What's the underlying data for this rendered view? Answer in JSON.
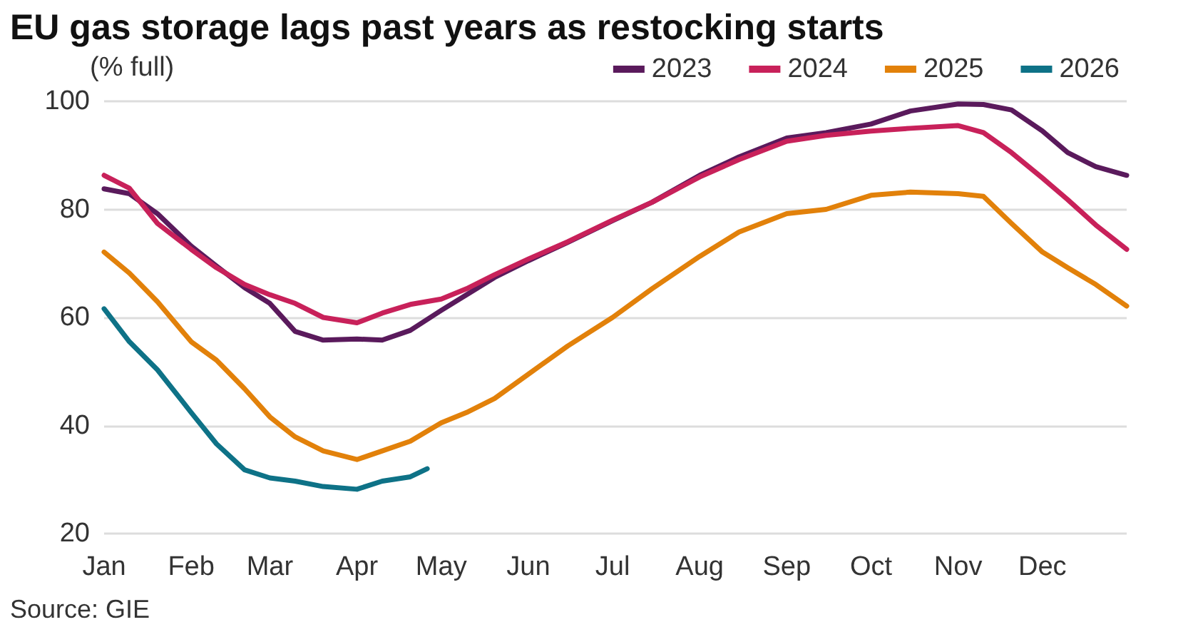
{
  "chart_data": {
    "type": "line",
    "title": "EU gas storage lags past years as restocking starts",
    "ylabel": "(% full)",
    "annotations": [
      "Source: GIE"
    ],
    "xlim": [
      "--01-01",
      "--12-31"
    ],
    "xticks": [
      {
        "value": "--01-01",
        "label": "Jan"
      },
      {
        "value": "--02-01",
        "label": "Feb"
      },
      {
        "value": "--03-01",
        "label": "Mar"
      },
      {
        "value": "--04-01",
        "label": "Apr"
      },
      {
        "value": "--05-01",
        "label": "May"
      },
      {
        "value": "--06-01",
        "label": "Jun"
      },
      {
        "value": "--07-01",
        "label": "Jul"
      },
      {
        "value": "--08-01",
        "label": "Aug"
      },
      {
        "value": "--09-01",
        "label": "Sep"
      },
      {
        "value": "--10-01",
        "label": "Oct"
      },
      {
        "value": "--11-01",
        "label": "Nov"
      },
      {
        "value": "--12-01",
        "label": "Dec"
      }
    ],
    "x": [
      "--01-01",
      "--01-10",
      "--01-20",
      "--02-01",
      "--02-10",
      "--02-20",
      "--03-01",
      "--03-10",
      "--03-20",
      "--04-01",
      "--04-10",
      "--04-20",
      "--05-01",
      "--05-10",
      "--05-20",
      "--06-01",
      "--06-15",
      "--07-01",
      "--07-15",
      "--08-01",
      "--08-15",
      "--09-01",
      "--09-15",
      "--10-01",
      "--10-15",
      "--11-01",
      "--11-10",
      "--11-20",
      "--12-01",
      "--12-10",
      "--12-20",
      "--12-31"
    ],
    "ylim": [
      20,
      100
    ],
    "yticks": [
      20,
      40,
      60,
      80,
      100
    ],
    "grid": "y",
    "legend": "top right",
    "marker": "none",
    "line_style": "solid",
    "series": [
      {
        "name": "2023",
        "color": "#5a1a5c",
        "values": [
          83.8,
          82.9,
          79.2,
          73.2,
          69.5,
          65.5,
          62.6,
          57.4,
          55.8,
          56,
          55.8,
          57.6,
          61.3,
          64.2,
          67.4,
          70.5,
          73.9,
          77.9,
          81.3,
          86.3,
          89.7,
          93.2,
          94.2,
          95.8,
          98.2,
          99.5,
          99.4,
          98.4,
          94.5,
          90.5,
          87.9,
          86.3
        ]
      },
      {
        "name": "2024",
        "color": "#c8215a",
        "values": [
          86.3,
          83.9,
          77.4,
          72.6,
          69.2,
          66.1,
          64.2,
          62.6,
          60,
          59,
          60.8,
          62.4,
          63.4,
          65.3,
          67.9,
          70.8,
          74,
          78,
          81.3,
          86,
          89.2,
          92.6,
          93.7,
          94.5,
          95,
          95.5,
          94.2,
          90.5,
          85.8,
          81.8,
          77.1,
          72.6
        ]
      },
      {
        "name": "2025",
        "color": "#e2810a",
        "values": [
          72.1,
          68.2,
          62.9,
          55.5,
          52.1,
          46.8,
          41.6,
          37.9,
          35.3,
          33.7,
          35.3,
          37.1,
          40.5,
          42.4,
          45,
          49.5,
          54.7,
          60,
          65.3,
          71.3,
          75.8,
          79.2,
          80,
          82.6,
          83.2,
          82.9,
          82.4,
          77.4,
          72.1,
          69.2,
          66.1,
          62.1
        ]
      },
      {
        "name": "2026",
        "color": "#0e7287",
        "x": [
          "--01-01",
          "--01-10",
          "--01-20",
          "--02-01",
          "--02-10",
          "--02-20",
          "--03-01",
          "--03-10",
          "--03-20",
          "--04-01",
          "--04-10",
          "--04-20",
          "--04-26"
        ],
        "values": [
          61.6,
          55.5,
          50.3,
          42.4,
          36.6,
          31.8,
          30.3,
          29.7,
          28.7,
          28.2,
          29.7,
          30.5,
          32
        ]
      }
    ]
  }
}
